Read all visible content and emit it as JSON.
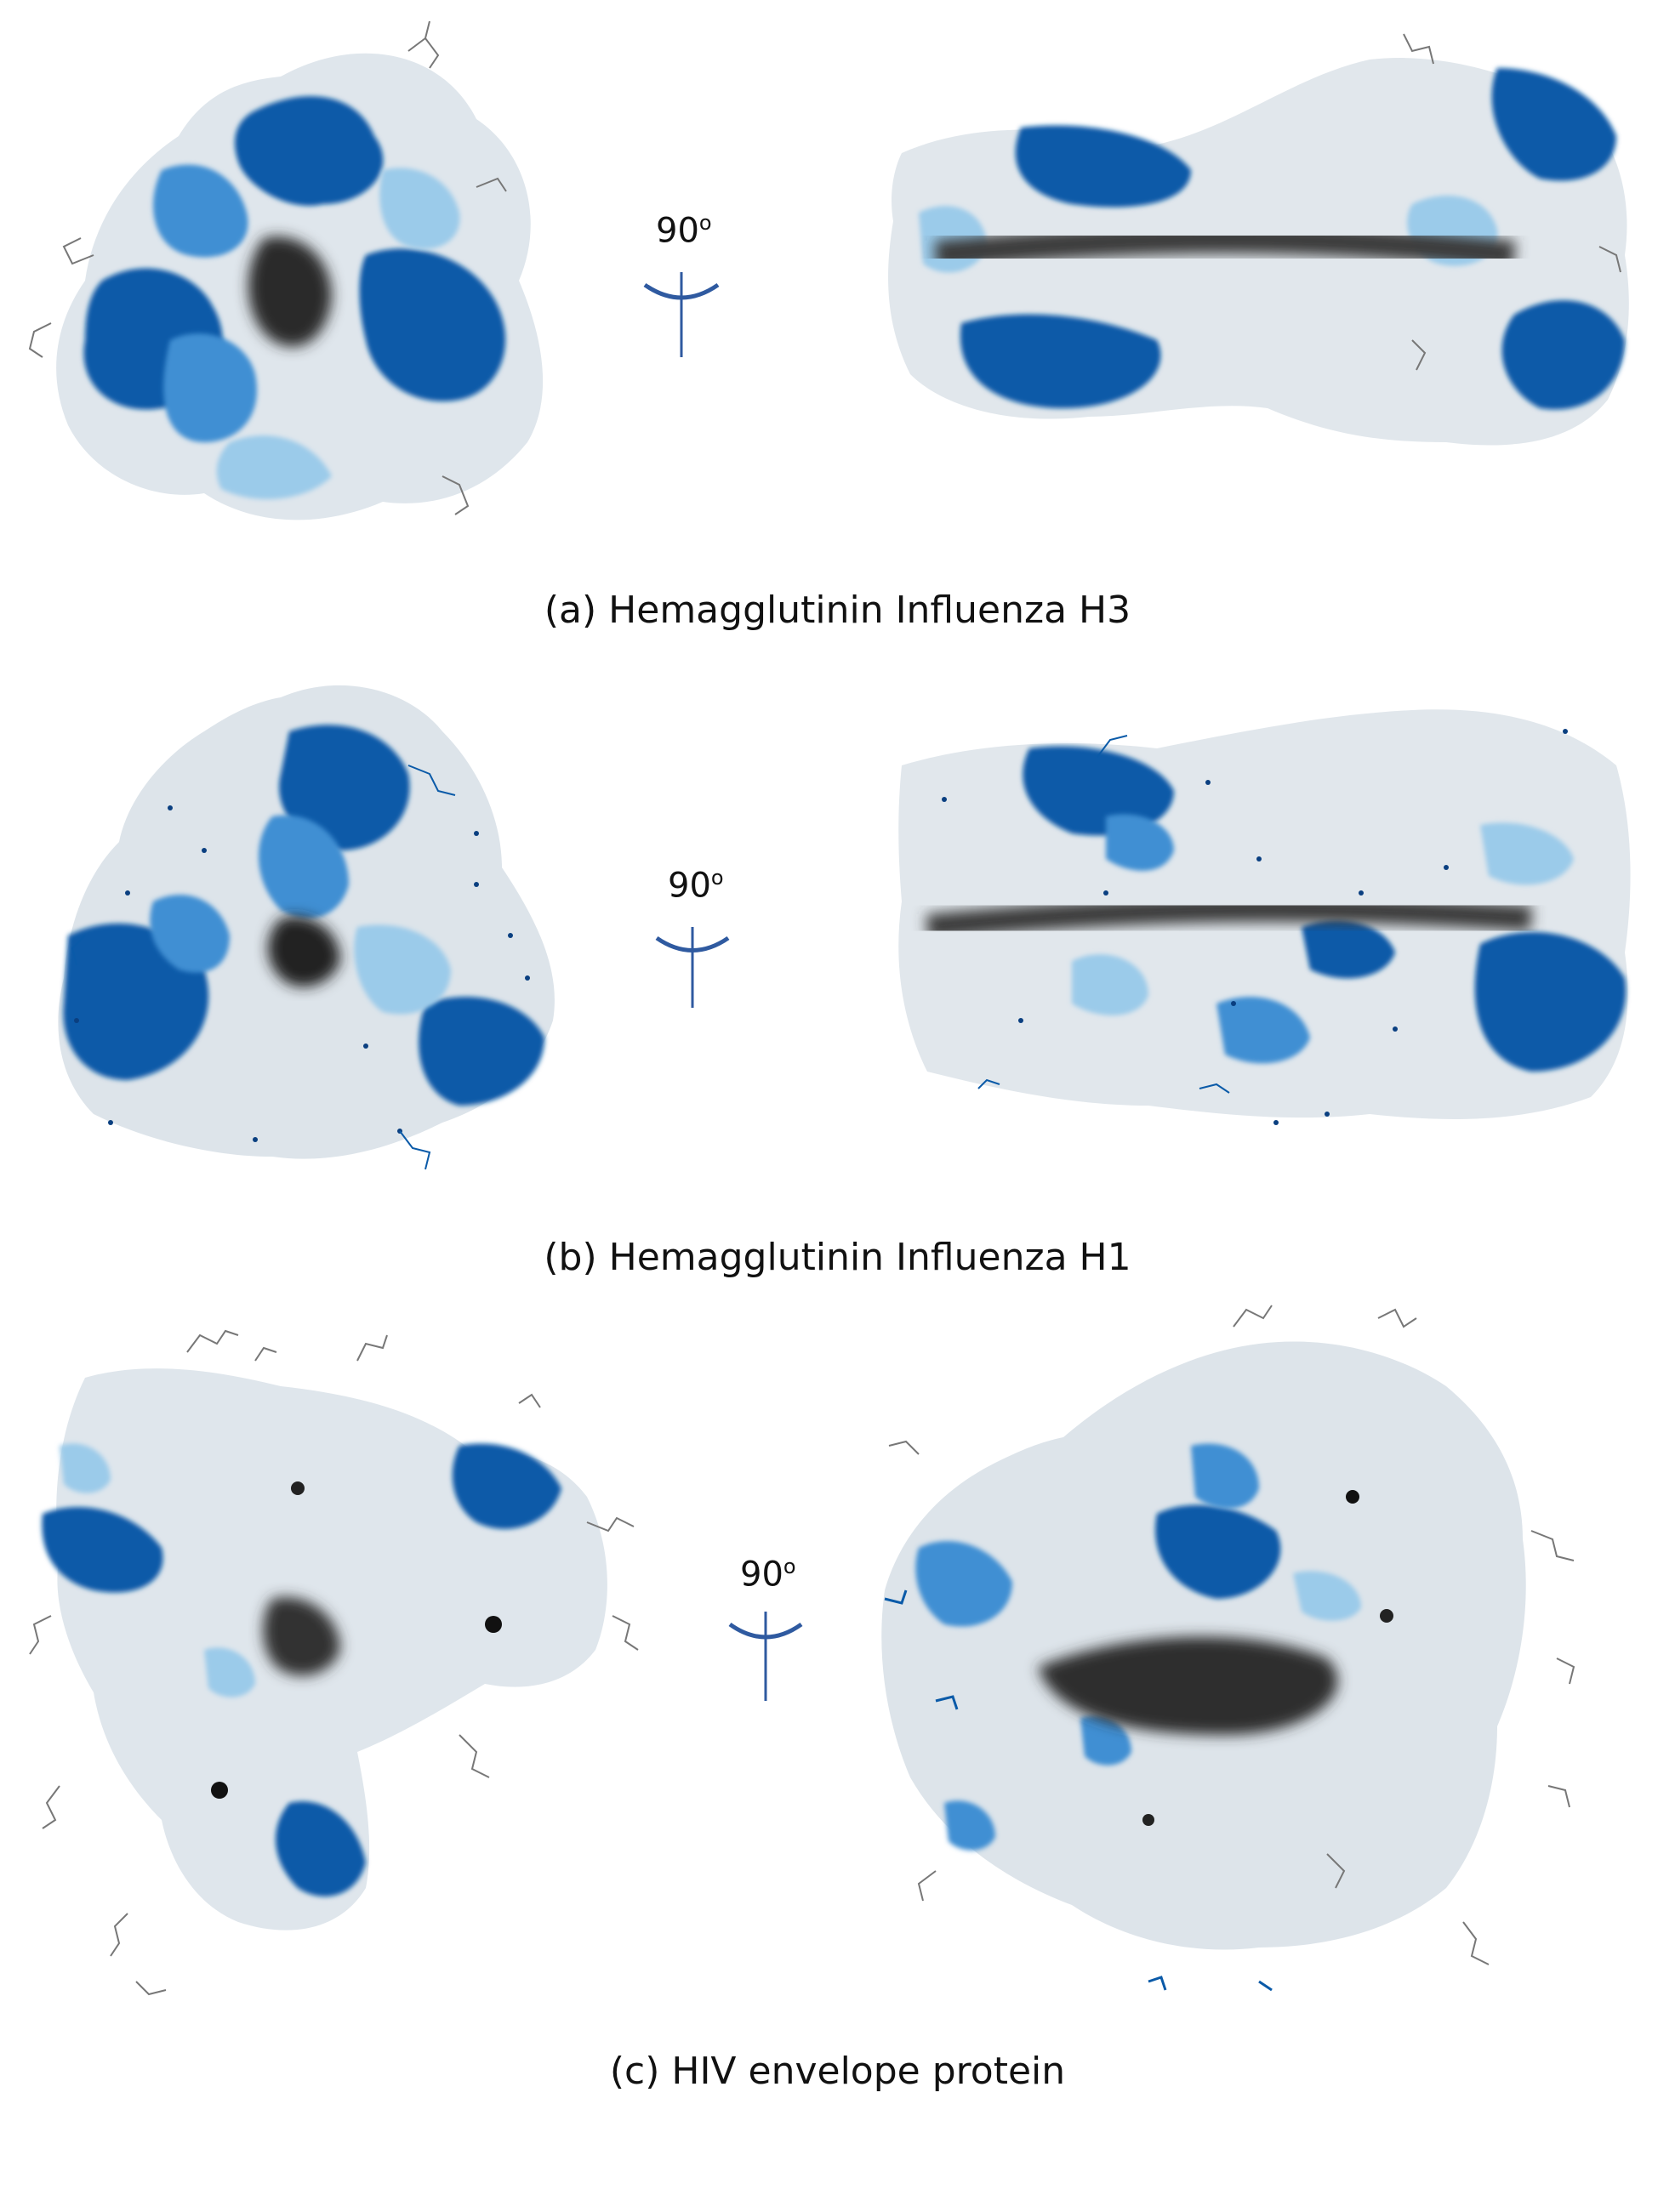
{
  "figure": {
    "rotation_angle": "90",
    "rotation_unit": "o",
    "panels": [
      {
        "caption": "(a) Hemagglutinin Influenza H3"
      },
      {
        "caption": "(b) Hemagglutinin Influenza H1"
      },
      {
        "caption": "(c) HIV  envelope protein"
      }
    ]
  },
  "colors": {
    "dark_blue": "#0a5aa8",
    "mid_blue": "#3f8fd3",
    "light_blue": "#9bcbea",
    "pale": "#e6eef4",
    "grey": "#b9bfc4",
    "shadow": "#2a2a2a",
    "glycan": "#777777",
    "rotation_symbol": "#2f5aa0"
  }
}
